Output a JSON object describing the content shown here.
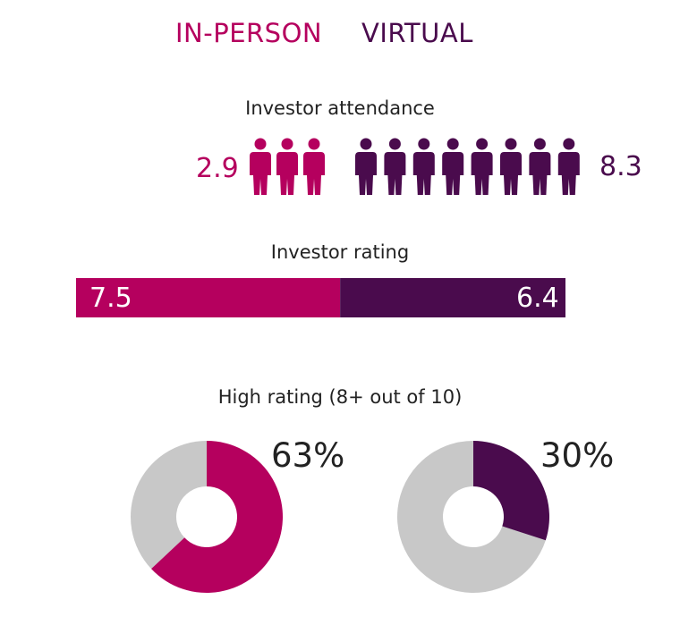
{
  "legend": {
    "in_person": "IN-PERSON",
    "virtual": "VIRTUAL"
  },
  "colors": {
    "in_person": "#b5005e",
    "virtual": "#4a0b4d",
    "neutral": "#c8c8c8",
    "text": "#222222"
  },
  "chart_data": [
    {
      "type": "pictogram",
      "title": "Investor attendance",
      "series": [
        {
          "name": "IN-PERSON",
          "value": 2.9,
          "label": "2.9",
          "icons": 3
        },
        {
          "name": "VIRTUAL",
          "value": 8.3,
          "label": "8.3",
          "icons": 8
        }
      ]
    },
    {
      "type": "bar",
      "stacked": true,
      "orientation": "horizontal",
      "title": "Investor rating",
      "series": [
        {
          "name": "IN-PERSON",
          "value": 7.5,
          "label": "7.5"
        },
        {
          "name": "VIRTUAL",
          "value": 6.4,
          "label": "6.4"
        }
      ]
    },
    {
      "type": "pie",
      "title": "High rating (8+ out of 10)",
      "donuts": [
        {
          "series": "IN-PERSON",
          "value": 63,
          "label": "63%"
        },
        {
          "series": "VIRTUAL",
          "value": 30,
          "label": "30%"
        }
      ]
    }
  ]
}
